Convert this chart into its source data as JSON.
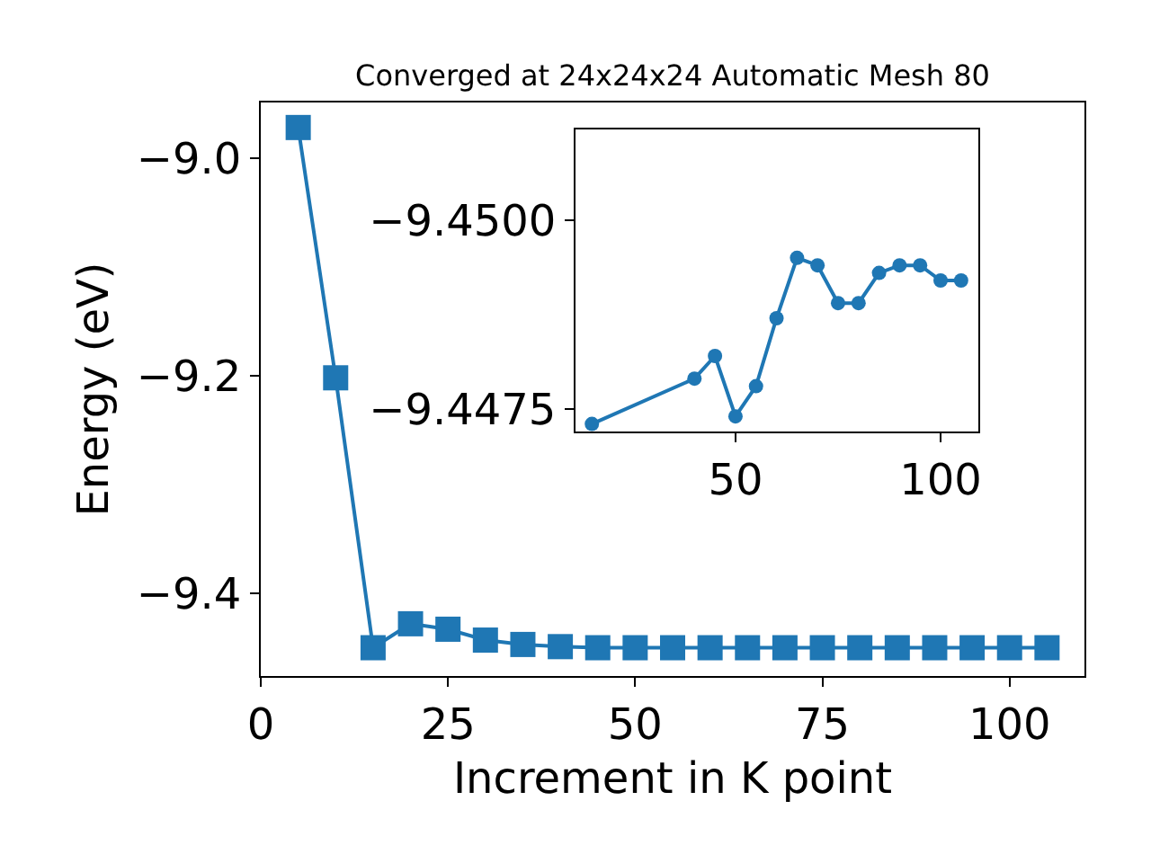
{
  "chart_data": [
    {
      "type": "line",
      "title": "Converged at 24x24x24 Automatic Mesh 80",
      "xlabel": "Increment in K point",
      "ylabel": "Energy (eV)",
      "x": [
        5,
        10,
        15,
        20,
        25,
        30,
        35,
        40,
        45,
        50,
        55,
        60,
        65,
        70,
        75,
        80,
        85,
        90,
        95,
        100,
        105
      ],
      "values": [
        -8.972,
        -9.202,
        -9.45,
        -9.428,
        -9.433,
        -9.443,
        -9.447,
        -9.449,
        -9.45,
        -9.45,
        -9.45,
        -9.45,
        -9.45,
        -9.45,
        -9.45,
        -9.45,
        -9.45,
        -9.45,
        -9.45,
        -9.45,
        -9.45
      ],
      "color": "#1f77b4",
      "marker": "square",
      "line_style": "solid",
      "xlim": [
        0,
        110
      ],
      "xticks": [
        0,
        25,
        50,
        75,
        100
      ],
      "ylim": [
        -9.476,
        -8.949
      ],
      "yticks": [
        {
          "value": -9.0,
          "label": "−9.0"
        },
        {
          "value": -9.2,
          "label": "−9.2"
        },
        {
          "value": -9.4,
          "label": "−9.4"
        }
      ]
    },
    {
      "type": "line",
      "x": [
        15,
        40,
        45,
        50,
        55,
        60,
        65,
        70,
        75,
        80,
        85,
        90,
        95,
        100,
        105
      ],
      "values": [
        -9.4473,
        -9.4479,
        -9.4482,
        -9.4474,
        -9.4478,
        -9.4487,
        -9.4495,
        -9.4494,
        -9.4489,
        -9.4489,
        -9.4493,
        -9.4494,
        -9.4494,
        -9.4492,
        -9.4492
      ],
      "color": "#1f77b4",
      "marker": "circle",
      "line_style": "solid",
      "xlim": [
        11,
        109.2
      ],
      "xticks": [
        50,
        100
      ],
      "ylim": [
        -9.4472,
        -9.4512
      ],
      "yticks": [
        {
          "value": -9.45,
          "label": "−9.4500"
        },
        {
          "value": -9.4475,
          "label": "−9.4475"
        }
      ]
    }
  ]
}
